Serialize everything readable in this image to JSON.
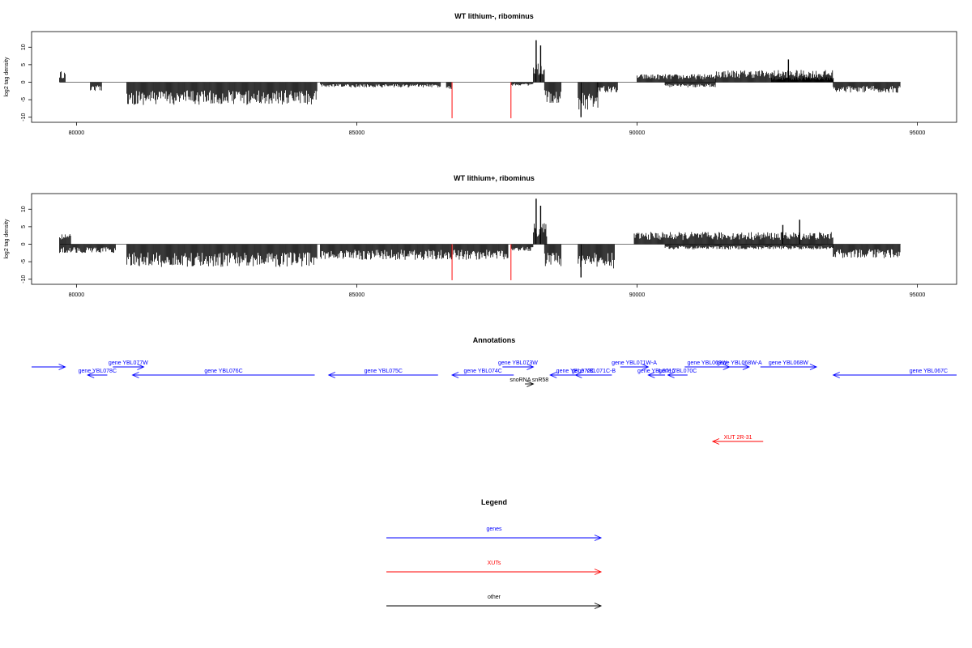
{
  "chart_data": [
    {
      "type": "bar",
      "title": "WT lithium-, ribominus",
      "ylabel": "log2 tag density",
      "xlim": [
        79200,
        95700
      ],
      "ylim": [
        -11,
        14
      ],
      "x_ticks": [
        80000,
        85000,
        90000,
        95000
      ],
      "y_ticks": [
        10,
        5,
        0,
        -5,
        -10
      ],
      "red_marks": [
        86700,
        87750
      ],
      "segments": [
        {
          "x0": 79700,
          "x1": 79800,
          "amp": 3.2,
          "dir": 1
        },
        {
          "x0": 80250,
          "x1": 80450,
          "amp": 2.5,
          "dir": -1
        },
        {
          "x0": 80900,
          "x1": 84300,
          "amp": 6.5,
          "dir": -1
        },
        {
          "x0": 84350,
          "x1": 86500,
          "amp": 1.5,
          "dir": -1
        },
        {
          "x0": 86600,
          "x1": 86700,
          "amp": 2.0,
          "dir": -1
        },
        {
          "x0": 87750,
          "x1": 88150,
          "amp": 1.0,
          "dir": -1
        },
        {
          "x0": 88150,
          "x1": 88350,
          "amp": 6.0,
          "dir": 1
        },
        {
          "x0": 88350,
          "x1": 88650,
          "amp": 6.0,
          "dir": -1
        },
        {
          "x0": 88950,
          "x1": 89300,
          "amp": 8.0,
          "dir": -1
        },
        {
          "x0": 89300,
          "x1": 89650,
          "amp": 3.0,
          "dir": -1
        },
        {
          "x0": 90000,
          "x1": 91400,
          "amp": 2.3,
          "dir": 1
        },
        {
          "x0": 90500,
          "x1": 91400,
          "amp": 1.5,
          "dir": -1
        },
        {
          "x0": 91400,
          "x1": 93500,
          "amp": 3.5,
          "dir": 1
        },
        {
          "x0": 92400,
          "x1": 93500,
          "amp": 1.5,
          "dir": 1
        },
        {
          "x0": 93500,
          "x1": 94700,
          "amp": 3.0,
          "dir": -1
        }
      ],
      "peaks": [
        {
          "x": 88200,
          "y": 12.0
        },
        {
          "x": 88280,
          "y": 10.5
        },
        {
          "x": 89000,
          "y": -10.0
        },
        {
          "x": 92700,
          "y": 6.5
        }
      ]
    },
    {
      "type": "bar",
      "title": "WT lithium+, ribominus",
      "ylabel": "log2 tag density",
      "xlim": [
        79200,
        95700
      ],
      "ylim": [
        -11,
        14
      ],
      "x_ticks": [
        80000,
        85000,
        90000,
        95000
      ],
      "y_ticks": [
        10,
        5,
        0,
        -5,
        -10
      ],
      "red_marks": [
        86700,
        87750
      ],
      "segments": [
        {
          "x0": 79700,
          "x1": 79900,
          "amp": 3.0,
          "dir": 1
        },
        {
          "x0": 79700,
          "x1": 80700,
          "amp": 2.5,
          "dir": -1
        },
        {
          "x0": 80900,
          "x1": 84300,
          "amp": 6.5,
          "dir": -1
        },
        {
          "x0": 84350,
          "x1": 87700,
          "amp": 4.5,
          "dir": -1
        },
        {
          "x0": 87750,
          "x1": 88150,
          "amp": 2.0,
          "dir": -1
        },
        {
          "x0": 88150,
          "x1": 88400,
          "amp": 6.0,
          "dir": 1
        },
        {
          "x0": 88350,
          "x1": 88650,
          "amp": 6.5,
          "dir": -1
        },
        {
          "x0": 88950,
          "x1": 89600,
          "amp": 7.0,
          "dir": -1
        },
        {
          "x0": 89950,
          "x1": 93500,
          "amp": 3.5,
          "dir": 1
        },
        {
          "x0": 90500,
          "x1": 93500,
          "amp": 1.5,
          "dir": -1
        },
        {
          "x0": 93500,
          "x1": 94700,
          "amp": 4.0,
          "dir": -1
        }
      ],
      "peaks": [
        {
          "x": 88200,
          "y": 13.0
        },
        {
          "x": 88280,
          "y": 11.0
        },
        {
          "x": 89000,
          "y": -9.5
        },
        {
          "x": 92900,
          "y": 7.0
        },
        {
          "x": 92600,
          "y": 5.5
        }
      ]
    }
  ],
  "annotations": {
    "title": "Annotations",
    "features": [
      {
        "label": "",
        "x0": 79200,
        "x1": 79800,
        "row": 0,
        "strand": "+",
        "kind": "gene"
      },
      {
        "label": "gene YBL078C",
        "x0": 80200,
        "x1": 80550,
        "row": 1,
        "strand": "-",
        "kind": "gene"
      },
      {
        "label": "gene YBL077W",
        "x0": 80650,
        "x1": 81200,
        "row": 0,
        "strand": "+",
        "kind": "gene"
      },
      {
        "label": "gene YBL076C",
        "x0": 81000,
        "x1": 84250,
        "row": 1,
        "strand": "-",
        "kind": "gene"
      },
      {
        "label": "gene YBL075C",
        "x0": 84500,
        "x1": 86450,
        "row": 1,
        "strand": "-",
        "kind": "gene"
      },
      {
        "label": "gene YBL074C",
        "x0": 86700,
        "x1": 87800,
        "row": 1,
        "strand": "-",
        "kind": "gene"
      },
      {
        "label": "gene YBL073W",
        "x0": 87600,
        "x1": 88150,
        "row": 0,
        "strand": "+",
        "kind": "gene"
      },
      {
        "label": "snoRNA snR58",
        "x0": 88000,
        "x1": 88150,
        "row": 2,
        "strand": "+",
        "kind": "other"
      },
      {
        "label": "gene YBL072C",
        "x0": 88450,
        "x1": 89350,
        "row": 1,
        "strand": "-",
        "kind": "gene"
      },
      {
        "label": "gene YBL071C-B",
        "x0": 88900,
        "x1": 89550,
        "row": 1,
        "strand": "-",
        "kind": "gene"
      },
      {
        "label": "gene YBL071W-A",
        "x0": 89700,
        "x1": 90200,
        "row": 0,
        "strand": "+",
        "kind": "gene"
      },
      {
        "label": "gene YBL071C",
        "x0": 90200,
        "x1": 90500,
        "row": 1,
        "strand": "-",
        "kind": "gene"
      },
      {
        "label": "gene YBL070C",
        "x0": 90550,
        "x1": 90900,
        "row": 1,
        "strand": "-",
        "kind": "gene"
      },
      {
        "label": "gene YBL069W",
        "x0": 90850,
        "x1": 91650,
        "row": 0,
        "strand": "+",
        "kind": "gene"
      },
      {
        "label": "gene YBL068W-A",
        "x0": 91650,
        "x1": 92000,
        "row": 0,
        "strand": "+",
        "kind": "gene"
      },
      {
        "label": "gene YBL068W",
        "x0": 92200,
        "x1": 93200,
        "row": 0,
        "strand": "+",
        "kind": "gene"
      },
      {
        "label": "gene YBL067C",
        "x0": 93500,
        "x1": 95700,
        "row": 1,
        "strand": "-",
        "kind": "gene",
        "label_x": 95200
      },
      {
        "label": "XUT 2R-31",
        "x0": 91350,
        "x1": 92250,
        "row": 3,
        "strand": "-",
        "kind": "xut"
      }
    ]
  },
  "legend": {
    "title": "Legend",
    "items": [
      {
        "label": "genes",
        "kind": "gene"
      },
      {
        "label": "XUTs",
        "kind": "xut"
      },
      {
        "label": "other",
        "kind": "other"
      }
    ]
  },
  "colors": {
    "gene": "#0000ff",
    "xut": "#ff0000",
    "other": "#000000",
    "mark": "#ff3333",
    "axis": "#000000",
    "baseline": "#777777"
  }
}
